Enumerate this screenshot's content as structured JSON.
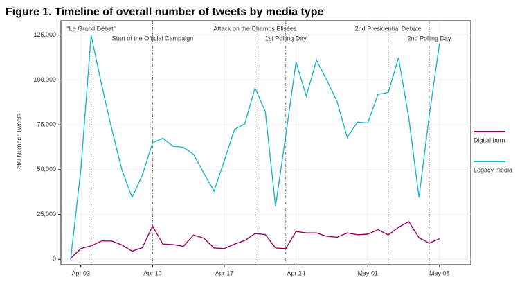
{
  "chart_data": {
    "type": "line",
    "title": "Figure 1. Timeline of overall number of tweets by media type",
    "ylabel": "Total Number Tweets",
    "x": [
      "Apr 02",
      "Apr 03",
      "Apr 04",
      "Apr 05",
      "Apr 06",
      "Apr 07",
      "Apr 08",
      "Apr 09",
      "Apr 10",
      "Apr 11",
      "Apr 12",
      "Apr 13",
      "Apr 14",
      "Apr 15",
      "Apr 16",
      "Apr 17",
      "Apr 18",
      "Apr 19",
      "Apr 20",
      "Apr 21",
      "Apr 22",
      "Apr 23",
      "Apr 24",
      "Apr 25",
      "Apr 26",
      "Apr 27",
      "Apr 28",
      "Apr 29",
      "Apr 30",
      "May 01",
      "May 02",
      "May 03",
      "May 04",
      "May 05",
      "May 06",
      "May 07",
      "May 08"
    ],
    "xticks": [
      "Apr 03",
      "Apr 10",
      "Apr 17",
      "Apr 24",
      "May 01",
      "May 08"
    ],
    "ylim": [
      -3000,
      133000
    ],
    "yticks": [
      0,
      {
        "value": 25000,
        "label": "25,000"
      },
      {
        "value": 50000,
        "label": "50,000"
      },
      {
        "value": 75000,
        "label": "75,000"
      },
      {
        "value": 100000,
        "label": "100,000"
      },
      {
        "value": 125000,
        "label": "125,000"
      }
    ],
    "grid": true,
    "legend": "right",
    "series": [
      {
        "name": "Digital born",
        "color": "#990066",
        "values": [
          500,
          6000,
          7500,
          10200,
          10200,
          8000,
          4500,
          6500,
          18500,
          8500,
          8200,
          7200,
          13500,
          11800,
          6300,
          6000,
          8500,
          10500,
          14300,
          13800,
          6300,
          6000,
          15500,
          14700,
          14700,
          12800,
          12300,
          14700,
          13700,
          14000,
          16500,
          13600,
          17800,
          21000,
          12000,
          9000,
          11500
        ]
      },
      {
        "name": "Legacy media",
        "color": "#1fb5c9",
        "values": [
          0,
          50000,
          125000,
          98000,
          73000,
          50000,
          34500,
          47000,
          65000,
          67500,
          63000,
          62500,
          58500,
          48000,
          38000,
          55000,
          72500,
          75500,
          95500,
          82500,
          29500,
          69000,
          110000,
          91000,
          111000,
          100000,
          88000,
          68000,
          76500,
          76000,
          92000,
          93000,
          112500,
          79000,
          34500,
          80000,
          120500
        ]
      }
    ],
    "events": [
      {
        "x": "Apr 04",
        "label": "\"Le Grand Débat\""
      },
      {
        "x": "Apr 10",
        "label": "Start of the Official Campaign"
      },
      {
        "x": "Apr 20",
        "label": "Attack on the Champs Élisées"
      },
      {
        "x": "Apr 23",
        "label": "1st Polling Day"
      },
      {
        "x": "May 03",
        "label": "2nd Presidential Debate"
      },
      {
        "x": "May 07",
        "label": "2nd Polling Day"
      }
    ]
  }
}
